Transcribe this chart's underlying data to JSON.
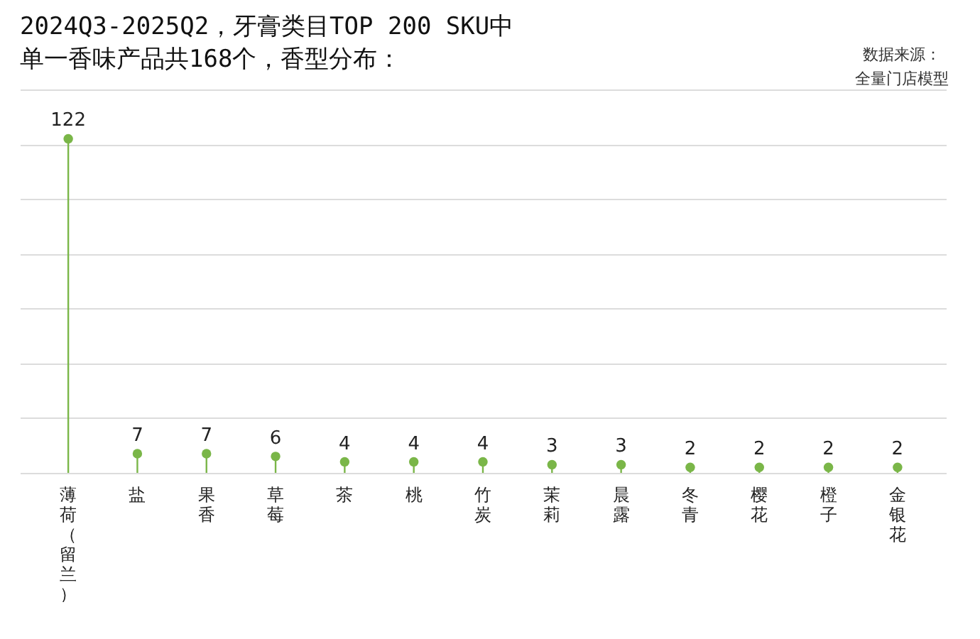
{
  "chart_data": {
    "type": "lollipop",
    "title": "2024Q3-2025Q2，牙膏类目TOP 200 SKU中",
    "subtitle": "单一香味产品共168个，香型分布：",
    "annotations": [
      "数据来源：",
      "全量门店模型"
    ],
    "categories": [
      "薄荷（留兰）",
      "盐",
      "果香",
      "草莓",
      "茶",
      "桃",
      "竹炭",
      "茉莉",
      "晨露",
      "冬青",
      "樱花",
      "橙子",
      "金银花"
    ],
    "values": [
      122,
      7,
      7,
      6,
      4,
      4,
      4,
      3,
      3,
      2,
      2,
      2,
      2
    ],
    "color": "#7ab648",
    "grid": "y",
    "tick_labels": "x",
    "data_labels": true,
    "marker": "circle"
  }
}
